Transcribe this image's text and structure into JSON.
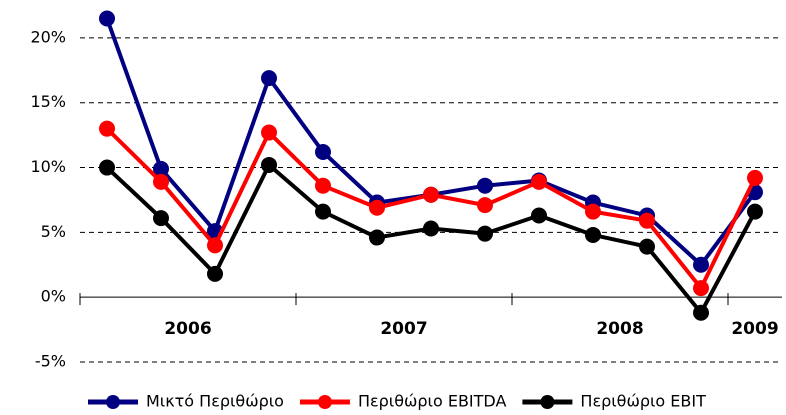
{
  "chart_data": {
    "type": "line",
    "categories": [
      "2006",
      null,
      null,
      null,
      "2007",
      null,
      null,
      null,
      "2008",
      null,
      null,
      null,
      "2009"
    ],
    "series": [
      {
        "name": "Μικτό Περιθώριο",
        "color": "#000080",
        "values": [
          21.5,
          9.9,
          5.1,
          16.9,
          11.2,
          7.3,
          7.9,
          8.6,
          9.0,
          7.3,
          6.3,
          2.5,
          8.1
        ]
      },
      {
        "name": "Περιθώριο EBITDA",
        "color": "#ff0000",
        "values": [
          13.0,
          8.9,
          4.0,
          12.7,
          8.6,
          6.9,
          7.9,
          7.1,
          8.9,
          6.6,
          5.9,
          0.7,
          9.2
        ]
      },
      {
        "name": "Περιθώριο EBIT",
        "color": "#000000",
        "values": [
          10.0,
          6.1,
          1.8,
          10.2,
          6.6,
          4.6,
          5.3,
          4.9,
          6.3,
          4.8,
          3.9,
          -1.2,
          6.6
        ]
      }
    ],
    "ylim": [
      -5,
      22
    ],
    "yticks": [
      {
        "value": -5,
        "label": "-5%"
      },
      {
        "value": 0,
        "label": "0%"
      },
      {
        "value": 5,
        "label": "5%"
      },
      {
        "value": 10,
        "label": "10%"
      },
      {
        "value": 15,
        "label": "15%"
      },
      {
        "value": 20,
        "label": "20%"
      }
    ],
    "grid": true,
    "legend": "bottom"
  }
}
